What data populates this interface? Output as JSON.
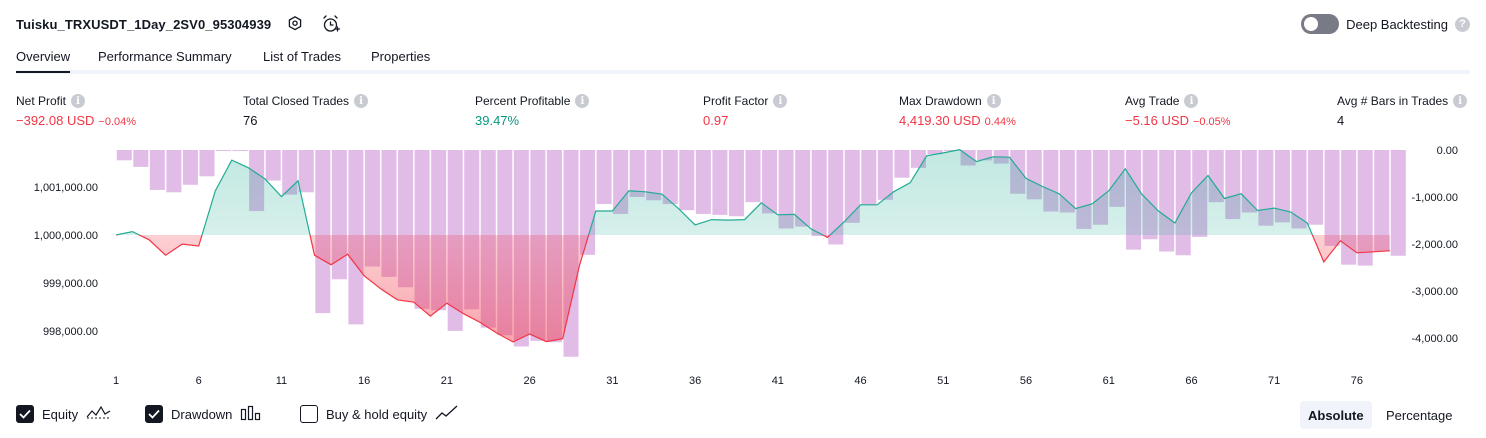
{
  "header": {
    "title": "Tuisku_TRXUSDT_1Day_2SV0_95304939",
    "deep_backtesting_label": "Deep Backtesting",
    "help_glyph": "?"
  },
  "icons": {
    "settings": "gear-icon",
    "alert": "alarm-clock-plus-icon"
  },
  "tabs": [
    {
      "label": "Overview",
      "active": true
    },
    {
      "label": "Performance Summary"
    },
    {
      "label": "List of Trades"
    },
    {
      "label": "Properties"
    }
  ],
  "info_glyph": "i",
  "metrics": [
    {
      "label": "Net Profit",
      "value": "−392.08 USD",
      "pct": "−0.04%",
      "color": "#f23645"
    },
    {
      "label": "Total Closed Trades",
      "value": "76",
      "pct": "",
      "color": "#131722"
    },
    {
      "label": "Percent Profitable",
      "value": "39.47%",
      "pct": "",
      "color": "#089981"
    },
    {
      "label": "Profit Factor",
      "value": "0.97",
      "pct": "",
      "color": "#f23645"
    },
    {
      "label": "Max Drawdown",
      "value": "4,419.30 USD",
      "pct": "0.44%",
      "color": "#f23645"
    },
    {
      "label": "Avg Trade",
      "value": "−5.16 USD",
      "pct": "−0.05%",
      "color": "#f23645"
    },
    {
      "label": "Avg # Bars in Trades",
      "value": "4",
      "pct": "",
      "color": "#131722"
    }
  ],
  "legend": {
    "equity": {
      "label": "Equity",
      "checked": true
    },
    "drawdown": {
      "label": "Drawdown",
      "checked": true
    },
    "buyhold": {
      "label": "Buy & hold equity",
      "checked": false
    }
  },
  "mode": {
    "absolute": "Absolute",
    "percentage": "Percentage",
    "selected": "Absolute"
  },
  "chart_data": {
    "type": "area",
    "x_ticks": [
      "1",
      "6",
      "11",
      "16",
      "21",
      "26",
      "31",
      "36",
      "41",
      "46",
      "51",
      "56",
      "61",
      "66",
      "71",
      "76"
    ],
    "left_axis": {
      "ticks": [
        "1,001,000.00",
        "1,000,000.00",
        "999,000.00",
        "998,000.00"
      ],
      "tick_values": [
        1001000,
        1000000,
        999000,
        998000
      ],
      "range": [
        997500,
        1001800
      ]
    },
    "right_axis": {
      "ticks": [
        "0.00",
        "-1,000.00",
        "-2,000.00",
        "-3,000.00",
        "-4,000.00"
      ],
      "tick_values": [
        0,
        -1000,
        -2000,
        -3000,
        -4000
      ],
      "range": [
        -4700,
        0
      ]
    },
    "baseline": 1000000,
    "equity": [
      1000000,
      1000070,
      999900,
      999580,
      999810,
      999770,
      1000920,
      1001560,
      1001400,
      1001170,
      1000800,
      1001130,
      999580,
      999380,
      999600,
      999150,
      998880,
      998650,
      998600,
      998310,
      998580,
      998360,
      998180,
      997960,
      997770,
      997940,
      997780,
      997840,
      999350,
      1000500,
      1000500,
      1000920,
      1000900,
      1000850,
      1000550,
      1000210,
      1000320,
      1000310,
      1000320,
      1000670,
      1000420,
      1000430,
      1000130,
      999950,
      1000270,
      1000630,
      1000630,
      1000900,
      1001090,
      1001650,
      1001710,
      1001780,
      1001530,
      1001630,
      1001620,
      1001180,
      1001010,
      1000860,
      1000550,
      1000650,
      1000920,
      1001380,
      1000850,
      1000500,
      1000250,
      1000880,
      1001240,
      1000760,
      1000860,
      1000510,
      1000560,
      1000480,
      1000250,
      999440,
      999880,
      999630,
      999650,
      999670
    ],
    "drawdown": [
      -220,
      -360,
      -850,
      -900,
      -740,
      -560,
      0,
      0,
      -1300,
      -650,
      -950,
      -900,
      -3470,
      -2750,
      -3710,
      -2480,
      -2700,
      -2920,
      -3380,
      -3410,
      -3850,
      -3390,
      -3780,
      -3940,
      -4180,
      -4060,
      -4090,
      -4400,
      -2230,
      -1150,
      -1360,
      -1000,
      -1070,
      -1150,
      -1280,
      -1360,
      -1380,
      -1410,
      -1110,
      -1350,
      -1670,
      -1630,
      -1830,
      -2010,
      -1550,
      -1160,
      -1060,
      -590,
      -380,
      -90,
      0,
      -330,
      -220,
      -290,
      -930,
      -1050,
      -1310,
      -1330,
      -1680,
      -1590,
      -1210,
      -2120,
      -1900,
      -2160,
      -2240,
      -1850,
      -1110,
      -1470,
      -1330,
      -1610,
      -1540,
      -1670,
      -1590,
      -2040,
      -2440,
      -2460,
      -2150,
      -2250
    ],
    "colors": {
      "equity_up": "#22ab94",
      "equity_down": "#f23645",
      "drawdown_bar": "#ce93d8"
    }
  }
}
